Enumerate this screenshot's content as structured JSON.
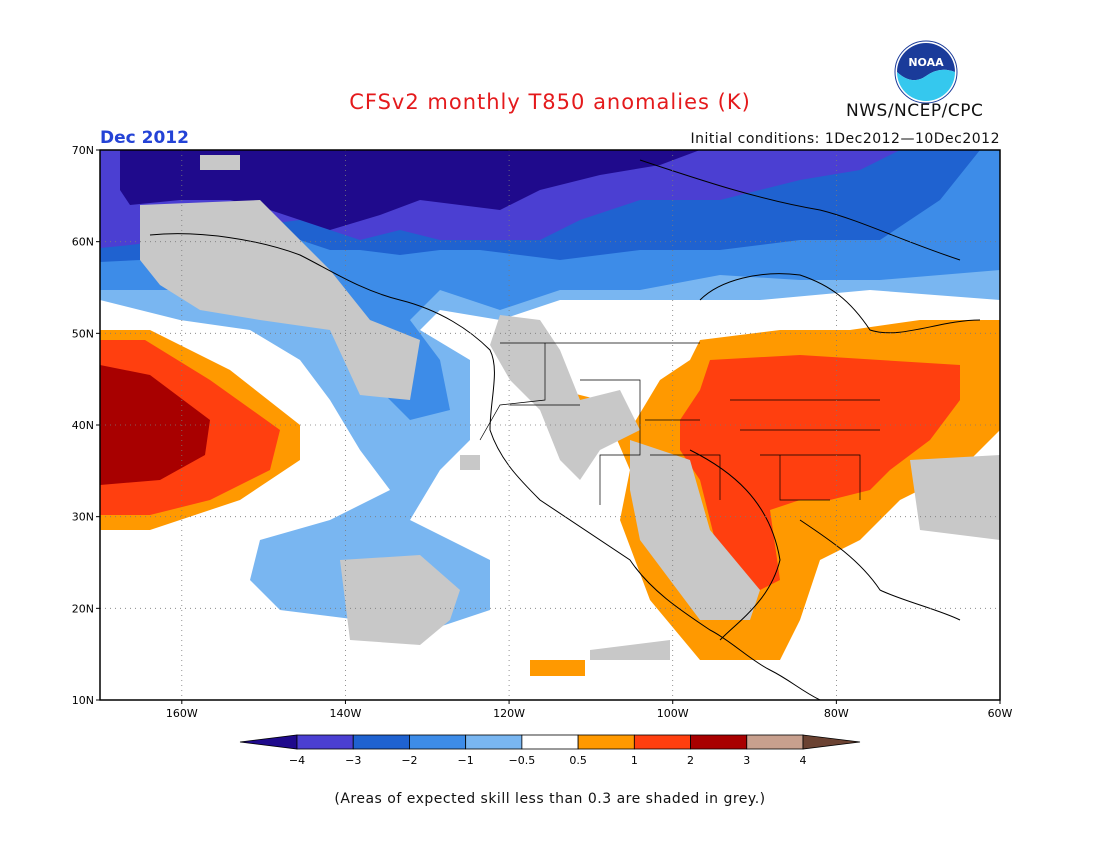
{
  "header": {
    "title": "CFSv2 monthly T850 anomalies (K)",
    "month": "Dec 2012",
    "initial_conditions": "Initial conditions: 1Dec2012—10Dec2012",
    "agency": "NWS/NCEP/CPC",
    "logo_text": "NOAA"
  },
  "map": {
    "lat_labels": [
      "70N",
      "60N",
      "50N",
      "40N",
      "30N",
      "20N",
      "10N"
    ],
    "lon_labels": [
      "160W",
      "140W",
      "120W",
      "100W",
      "80W",
      "60W"
    ]
  },
  "colorbar": {
    "tick_labels": [
      "−4",
      "−3",
      "−2",
      "−1",
      "−0.5",
      "0.5",
      "1",
      "2",
      "3",
      "4"
    ],
    "colors": [
      "#1f0a8c",
      "#4b3fd2",
      "#1f62d0",
      "#3d8ce8",
      "#79b6f1",
      "#ffffff",
      "#ff9900",
      "#ff3f0f",
      "#a80000",
      "#c8a08e",
      "#6b4232"
    ]
  },
  "footer": {
    "note": "(Areas of expected skill less than 0.3 are shaded in grey.)"
  },
  "legend_colors": {
    "grey_low_skill": "#c8c8c8"
  }
}
